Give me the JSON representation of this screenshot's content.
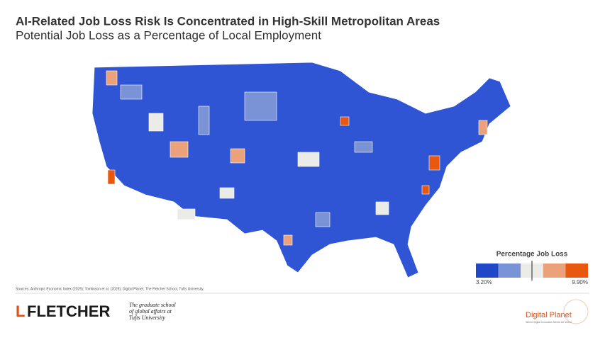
{
  "header": {
    "title": "AI-Related Job Loss Risk Is Concentrated in High-Skill Metropolitan Areas",
    "subtitle": "Potential Job Loss as a Percentage of Local Employment"
  },
  "legend": {
    "title": "Percentage Job Loss",
    "min_label": "3.20%",
    "max_label": "9.90%",
    "colors": [
      "#1f47c8",
      "#7a93d6",
      "#ebebe8",
      "#eba27a",
      "#e8580f"
    ]
  },
  "sources": "Sources: Anthropic Economic Index (2025); Tomlinson et al. (2025); Digital Planet, The Fletcher School, Tufts University.",
  "footer": {
    "fletcher_logo": "FLETCHER",
    "fletcher_tagline": "The graduate school of global affairs at Tufts University",
    "partner_logo": "Digital Planet",
    "partner_tagline": "Where Digital Innovation Meets the World"
  }
}
